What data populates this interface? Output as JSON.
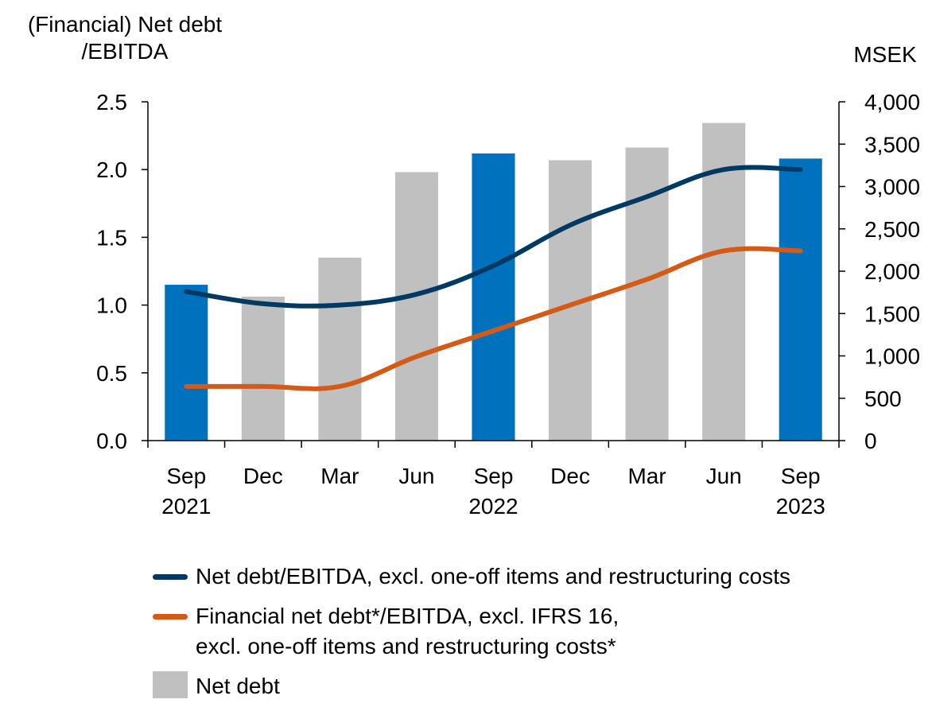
{
  "chart_data": {
    "type": "bar",
    "left_axis_title": "(Financial) Net debt\n/EBITDA",
    "right_axis_title": "MSEK",
    "left_ylim": [
      0,
      2.5
    ],
    "left_ticks": [
      "0.0",
      "0.5",
      "1.0",
      "1.5",
      "2.0",
      "2.5"
    ],
    "right_ylim": [
      0,
      4000
    ],
    "right_ticks": [
      "0",
      "500",
      "1,000",
      "1,500",
      "2,000",
      "2,500",
      "3,000",
      "3,500",
      "4,000"
    ],
    "categories": [
      "Sep 2021",
      "Dec",
      "Mar",
      "Jun",
      "Sep 2022",
      "Dec",
      "Mar",
      "Jun",
      "Sep 2023"
    ],
    "category_labels": [
      [
        "Sep",
        "2021"
      ],
      [
        "Dec",
        ""
      ],
      [
        "Mar",
        ""
      ],
      [
        "Jun",
        ""
      ],
      [
        "Sep",
        "2022"
      ],
      [
        "Dec",
        ""
      ],
      [
        "Mar",
        ""
      ],
      [
        "Jun",
        ""
      ],
      [
        "Sep",
        "2023"
      ]
    ],
    "bars": {
      "name": "Net debt",
      "axis": "right",
      "values": [
        1840,
        1700,
        2160,
        3170,
        3390,
        3310,
        3460,
        3750,
        3330
      ],
      "highlighted": [
        true,
        false,
        false,
        false,
        true,
        false,
        false,
        false,
        true
      ]
    },
    "series": [
      {
        "name": "Net debt/EBITDA, excl. one-off items and restructuring costs",
        "axis": "left",
        "values": [
          1.1,
          1.01,
          1.0,
          1.08,
          1.29,
          1.59,
          1.8,
          2.0,
          2.0
        ]
      },
      {
        "name": "Financial net debt*/EBITDA, excl. IFRS 16,\nexcl. one-off items and restructuring costs*",
        "axis": "left",
        "values": [
          0.4,
          0.4,
          0.4,
          0.62,
          0.81,
          1.0,
          1.19,
          1.4,
          1.4
        ]
      }
    ],
    "grid": false,
    "legend_position": "bottom"
  },
  "colors": {
    "bar_highlight": "#0071bc",
    "bar_default": "#c0c0c0",
    "line_primary": "#003a63",
    "line_secondary": "#d45a17"
  }
}
